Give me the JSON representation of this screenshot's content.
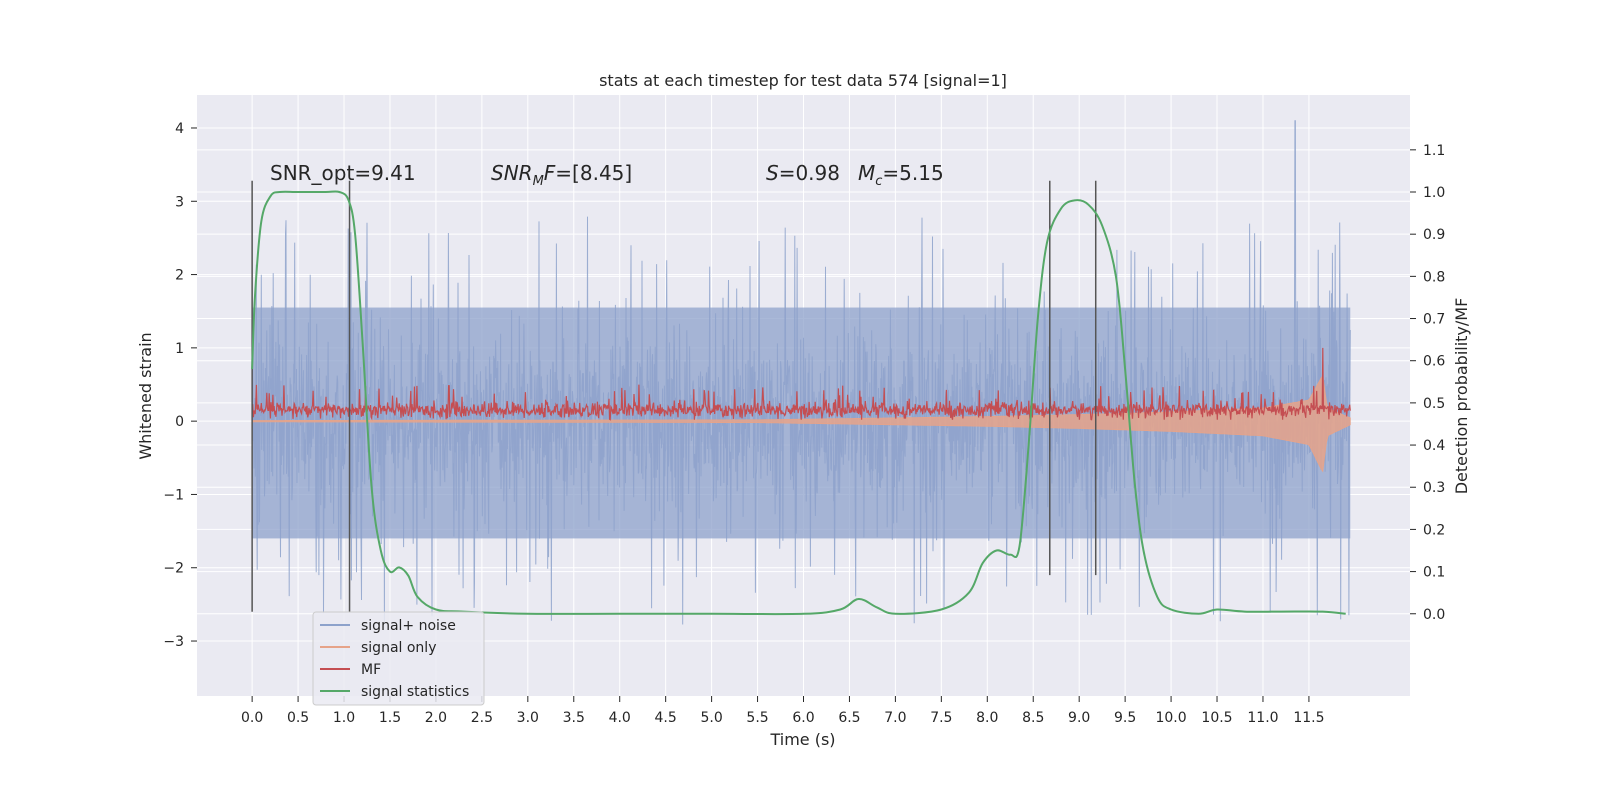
{
  "chart_data": {
    "type": "line",
    "title": "stats at each timestep for test data 574 [signal=1]",
    "xlabel": "Time (s)",
    "ylabel_left": "Whitened strain",
    "ylabel_right": "Detection probability/MF",
    "xlim": [
      -0.6,
      12.6
    ],
    "ylim_left": [
      -3.75,
      4.45
    ],
    "ylim_right": [
      -0.195,
      1.23
    ],
    "grid": true,
    "x_ticks": [
      "0.0",
      "0.5",
      "1.0",
      "1.5",
      "2.0",
      "2.5",
      "3.0",
      "3.5",
      "4.0",
      "4.5",
      "5.0",
      "5.5",
      "6.0",
      "6.5",
      "7.0",
      "7.5",
      "8.0",
      "8.5",
      "9.0",
      "9.5",
      "10.0",
      "10.5",
      "11.0",
      "11.5"
    ],
    "y_ticks_left": [
      "4",
      "3",
      "2",
      "1",
      "0",
      "−1",
      "−2",
      "−3"
    ],
    "y_ticks_left_values": [
      4,
      3,
      2,
      1,
      0,
      -1,
      -2,
      -3
    ],
    "y_ticks_right": [
      "1.1",
      "1.0",
      "0.9",
      "0.8",
      "0.7",
      "0.6",
      "0.5",
      "0.4",
      "0.3",
      "0.2",
      "0.1",
      "0.0"
    ],
    "y_ticks_right_values": [
      1.1,
      1.0,
      0.9,
      0.8,
      0.7,
      0.6,
      0.5,
      0.4,
      0.3,
      0.2,
      0.1,
      0.0
    ],
    "annotations": {
      "snr_opt": "SNR_opt=9.41",
      "snr_mf_italic": "SNR",
      "snr_mf_sub": "M",
      "snr_mf_italic2": "F",
      "snr_mf_rest": "=[8.45]",
      "s_italic": "S",
      "s_rest": "=0.98",
      "mc_italic": "M",
      "mc_sub": "c",
      "mc_rest": "=5.15"
    },
    "legend_position": "lower-left",
    "series": [
      {
        "name": "signal+ noise",
        "color": "#8da2cb",
        "style": "dense noise trace, mostly within ±1.5, spikes to ±2.9, peak 4.1 at t≈11.35",
        "duration": 11.95,
        "band": [
          -1.6,
          1.55
        ]
      },
      {
        "name": "signal only",
        "color": "#e6a389",
        "style": "chirp envelope growing toward merger",
        "envelope": {
          "t": [
            0,
            5.5,
            6.5,
            8.0,
            9.0,
            10.0,
            11.0,
            11.5,
            11.65,
            11.7,
            11.95
          ],
          "amp": [
            0.01,
            0.02,
            0.04,
            0.07,
            0.1,
            0.14,
            0.2,
            0.32,
            0.7,
            0.2,
            0.05
          ]
        }
      },
      {
        "name": "MF",
        "color": "#c44e52",
        "style": "noisy band between 0.0 and 0.3, spike to 1.0 at t≈11.65",
        "band": [
          0.02,
          0.3
        ],
        "spike": {
          "t": 11.65,
          "y": 1.0
        }
      },
      {
        "name": "signal statistics",
        "color": "#55a868",
        "axis": "right",
        "x": [
          0.0,
          0.03,
          0.1,
          0.2,
          0.3,
          0.5,
          0.8,
          0.95,
          1.05,
          1.12,
          1.2,
          1.3,
          1.4,
          1.5,
          1.6,
          1.7,
          1.8,
          2.0,
          2.3,
          3.0,
          4.0,
          5.0,
          6.0,
          6.4,
          6.6,
          6.8,
          7.0,
          7.5,
          7.8,
          7.95,
          8.1,
          8.25,
          8.35,
          8.45,
          8.55,
          8.65,
          8.8,
          8.95,
          9.1,
          9.25,
          9.4,
          9.5,
          9.6,
          9.7,
          9.85,
          10.0,
          10.3,
          10.5,
          10.8,
          11.2,
          11.65,
          11.9
        ],
        "values": [
          0.58,
          0.75,
          0.93,
          0.99,
          1.0,
          1.0,
          1.0,
          1.0,
          0.98,
          0.9,
          0.65,
          0.3,
          0.15,
          0.1,
          0.11,
          0.09,
          0.04,
          0.01,
          0.005,
          0.0,
          0.0,
          0.0,
          0.0,
          0.01,
          0.035,
          0.015,
          0.0,
          0.01,
          0.05,
          0.12,
          0.15,
          0.14,
          0.16,
          0.4,
          0.7,
          0.88,
          0.96,
          0.98,
          0.97,
          0.92,
          0.8,
          0.58,
          0.32,
          0.15,
          0.04,
          0.01,
          0.0,
          0.01,
          0.005,
          0.005,
          0.005,
          0.0
        ]
      }
    ],
    "vertical_markers": [
      {
        "x": 0.0,
        "ymin": -2.6,
        "ymax": 3.28
      },
      {
        "x": 1.06,
        "ymin": -2.6,
        "ymax": 3.28
      },
      {
        "x": 8.68,
        "ymin": -2.1,
        "ymax": 3.28
      },
      {
        "x": 9.18,
        "ymin": -2.1,
        "ymax": 3.28
      }
    ]
  }
}
